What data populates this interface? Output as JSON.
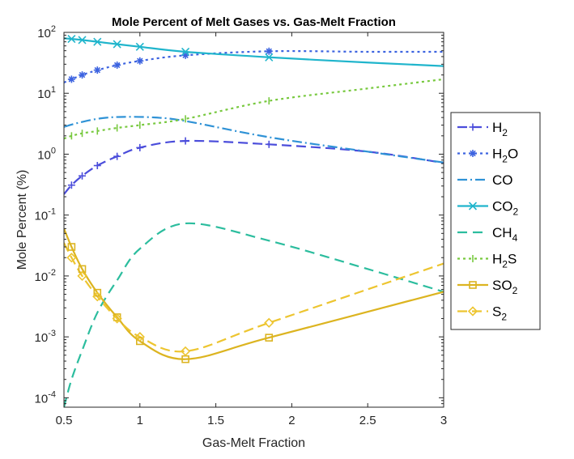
{
  "chart_data": {
    "type": "line",
    "title": "Mole Percent of Melt Gases vs. Gas-Melt Fraction",
    "xlabel": "Gas-Melt Fraction",
    "ylabel": "Mole Percent (%)",
    "xlim": [
      0.5,
      3
    ],
    "ylim": [
      7e-05,
      100
    ],
    "yscale": "log",
    "grid": false,
    "legend_position": "right",
    "x_ticks": [
      0.5,
      1,
      1.5,
      2,
      2.5,
      3
    ],
    "x_tick_labels": [
      "0.5",
      "1",
      "1.5",
      "2",
      "2.5",
      "3"
    ],
    "y_ticks": [
      {
        "value": 0.0001,
        "base": "10",
        "exp": "-4"
      },
      {
        "value": 0.001,
        "base": "10",
        "exp": "-3"
      },
      {
        "value": 0.01,
        "base": "10",
        "exp": "-2"
      },
      {
        "value": 0.1,
        "base": "10",
        "exp": "-1"
      },
      {
        "value": 1,
        "base": "10",
        "exp": "0"
      },
      {
        "value": 10,
        "base": "10",
        "exp": "1"
      },
      {
        "value": 100,
        "base": "10",
        "exp": "2"
      }
    ],
    "series": [
      {
        "name": "H2",
        "label_main": "H",
        "label_sub": "2",
        "label_tail": "",
        "color": "#4b4ddb",
        "dash": "12,6",
        "marker": "plus",
        "x": [
          0.5,
          0.55,
          0.62,
          0.72,
          0.85,
          1.0,
          1.3,
          1.85,
          2.5,
          3.0
        ],
        "y": [
          0.22,
          0.31,
          0.44,
          0.65,
          0.92,
          1.28,
          1.65,
          1.45,
          1.1,
          0.72
        ],
        "marker_x": [
          0.55,
          0.62,
          0.72,
          0.85,
          1.0,
          1.3,
          1.85
        ]
      },
      {
        "name": "H2O",
        "label_main": "H",
        "label_sub": "2",
        "label_tail": "O",
        "color": "#3c63e0",
        "dash": "3,4",
        "marker": "asterisk",
        "x": [
          0.5,
          0.55,
          0.62,
          0.72,
          0.85,
          1.0,
          1.3,
          1.85,
          2.5,
          3.0
        ],
        "y": [
          15,
          17,
          20,
          24,
          29,
          34,
          42,
          49,
          48,
          48
        ],
        "marker_x": [
          0.55,
          0.62,
          0.72,
          0.85,
          1.0,
          1.3,
          1.85
        ]
      },
      {
        "name": "CO",
        "label_main": "CO",
        "label_sub": "",
        "label_tail": "",
        "color": "#2f92d6",
        "dash": "12,4,2,4",
        "marker": "none",
        "x": [
          0.5,
          0.6,
          0.75,
          0.9,
          1.1,
          1.3,
          1.85,
          2.5,
          3.0
        ],
        "y": [
          2.8,
          3.3,
          3.9,
          4.1,
          4.0,
          3.5,
          1.9,
          1.1,
          0.73
        ],
        "marker_x": []
      },
      {
        "name": "CO2",
        "label_main": "CO",
        "label_sub": "2",
        "label_tail": "",
        "color": "#20b5cc",
        "dash": "",
        "marker": "x",
        "x": [
          0.5,
          0.55,
          0.62,
          0.72,
          0.85,
          1.0,
          1.3,
          1.85,
          2.5,
          3.0
        ],
        "y": [
          80,
          78,
          75,
          70,
          64,
          58,
          48,
          39,
          32,
          28
        ],
        "marker_x": [
          0.55,
          0.62,
          0.72,
          0.85,
          1.0,
          1.3,
          1.85
        ]
      },
      {
        "name": "CH4",
        "label_main": "CH",
        "label_sub": "4",
        "label_tail": "",
        "color": "#2cbd9e",
        "dash": "12,7",
        "marker": "none",
        "x": [
          0.5,
          0.55,
          0.62,
          0.72,
          0.85,
          1.0,
          1.3,
          1.85,
          2.5,
          3.0
        ],
        "y": [
          7e-05,
          0.0002,
          0.0006,
          0.0025,
          0.0085,
          0.028,
          0.073,
          0.038,
          0.013,
          0.0055
        ],
        "marker_x": []
      },
      {
        "name": "H2S",
        "label_main": "H",
        "label_sub": "2",
        "label_tail": "S",
        "color": "#78c93f",
        "dash": "3,4",
        "marker": "vbar",
        "x": [
          0.5,
          0.55,
          0.62,
          0.72,
          0.85,
          1.0,
          1.3,
          1.85,
          2.5,
          3.0
        ],
        "y": [
          1.8,
          2.0,
          2.2,
          2.4,
          2.7,
          3.0,
          3.8,
          7.5,
          12,
          17
        ],
        "marker_x": [
          0.55,
          0.62,
          0.72,
          0.85,
          1.0,
          1.3,
          1.85
        ]
      },
      {
        "name": "SO2",
        "label_main": "SO",
        "label_sub": "2",
        "label_tail": "",
        "color": "#dcb420",
        "dash": "",
        "marker": "square",
        "x": [
          0.5,
          0.55,
          0.62,
          0.72,
          0.85,
          1.0,
          1.3,
          1.85,
          3.0
        ],
        "y": [
          0.06,
          0.03,
          0.013,
          0.0053,
          0.0021,
          0.00085,
          0.00043,
          0.00097,
          0.0055
        ],
        "marker_x": [
          0.55,
          0.62,
          0.72,
          0.85,
          1.0,
          1.3,
          1.85
        ]
      },
      {
        "name": "S2",
        "label_main": "S",
        "label_sub": "2",
        "label_tail": "",
        "color": "#edc530",
        "dash": "12,6",
        "marker": "diamond",
        "x": [
          0.5,
          0.55,
          0.62,
          0.72,
          0.85,
          1.0,
          1.3,
          1.85,
          3.0
        ],
        "y": [
          0.035,
          0.02,
          0.01,
          0.0046,
          0.002,
          0.001,
          0.00058,
          0.0017,
          0.016
        ],
        "marker_x": [
          0.55,
          0.62,
          0.72,
          0.85,
          1.0,
          1.3,
          1.85
        ]
      }
    ]
  }
}
